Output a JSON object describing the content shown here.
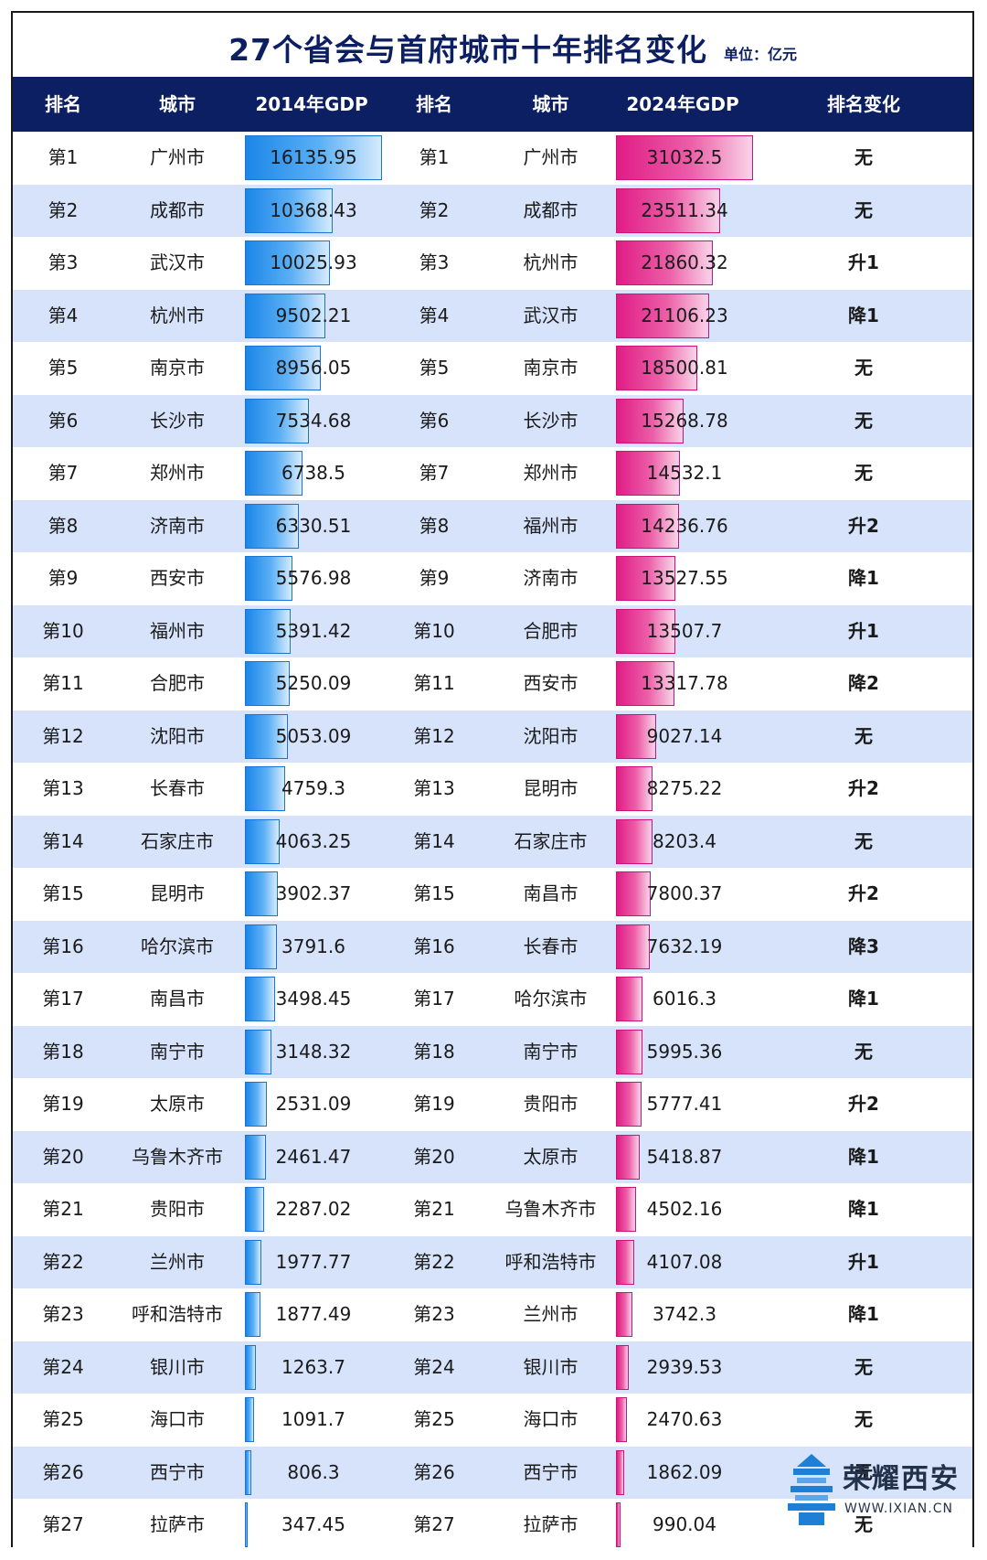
{
  "title": "27个省会与首府城市十年排名变化",
  "unit": "单位：亿元",
  "headers": [
    "排名",
    "城市",
    "2014年GDP",
    "排名",
    "城市",
    "2024年GDP",
    "排名变化"
  ],
  "max_2014": 16135.95,
  "max_2024": 31032.5,
  "colors": {
    "header_bg": "#0d1f63",
    "row_alt": "#d6e3fb",
    "bar_2014": "#1b86e8",
    "bar_2024": "#e01c86"
  },
  "rows": [
    {
      "r1": "第1",
      "c1": "广州市",
      "g1": "16135.95",
      "r2": "第1",
      "c2": "广州市",
      "g2": "31032.5",
      "chg": "无"
    },
    {
      "r1": "第2",
      "c1": "成都市",
      "g1": "10368.43",
      "r2": "第2",
      "c2": "成都市",
      "g2": "23511.34",
      "chg": "无"
    },
    {
      "r1": "第3",
      "c1": "武汉市",
      "g1": "10025.93",
      "r2": "第3",
      "c2": "杭州市",
      "g2": "21860.32",
      "chg": "升1"
    },
    {
      "r1": "第4",
      "c1": "杭州市",
      "g1": "9502.21",
      "r2": "第4",
      "c2": "武汉市",
      "g2": "21106.23",
      "chg": "降1"
    },
    {
      "r1": "第5",
      "c1": "南京市",
      "g1": "8956.05",
      "r2": "第5",
      "c2": "南京市",
      "g2": "18500.81",
      "chg": "无"
    },
    {
      "r1": "第6",
      "c1": "长沙市",
      "g1": "7534.68",
      "r2": "第6",
      "c2": "长沙市",
      "g2": "15268.78",
      "chg": "无"
    },
    {
      "r1": "第7",
      "c1": "郑州市",
      "g1": "6738.5",
      "r2": "第7",
      "c2": "郑州市",
      "g2": "14532.1",
      "chg": "无"
    },
    {
      "r1": "第8",
      "c1": "济南市",
      "g1": "6330.51",
      "r2": "第8",
      "c2": "福州市",
      "g2": "14236.76",
      "chg": "升2"
    },
    {
      "r1": "第9",
      "c1": "西安市",
      "g1": "5576.98",
      "r2": "第9",
      "c2": "济南市",
      "g2": "13527.55",
      "chg": "降1"
    },
    {
      "r1": "第10",
      "c1": "福州市",
      "g1": "5391.42",
      "r2": "第10",
      "c2": "合肥市",
      "g2": "13507.7",
      "chg": "升1"
    },
    {
      "r1": "第11",
      "c1": "合肥市",
      "g1": "5250.09",
      "r2": "第11",
      "c2": "西安市",
      "g2": "13317.78",
      "chg": "降2"
    },
    {
      "r1": "第12",
      "c1": "沈阳市",
      "g1": "5053.09",
      "r2": "第12",
      "c2": "沈阳市",
      "g2": "9027.14",
      "chg": "无"
    },
    {
      "r1": "第13",
      "c1": "长春市",
      "g1": "4759.3",
      "r2": "第13",
      "c2": "昆明市",
      "g2": "8275.22",
      "chg": "升2"
    },
    {
      "r1": "第14",
      "c1": "石家庄市",
      "g1": "4063.25",
      "r2": "第14",
      "c2": "石家庄市",
      "g2": "8203.4",
      "chg": "无"
    },
    {
      "r1": "第15",
      "c1": "昆明市",
      "g1": "3902.37",
      "r2": "第15",
      "c2": "南昌市",
      "g2": "7800.37",
      "chg": "升2"
    },
    {
      "r1": "第16",
      "c1": "哈尔滨市",
      "g1": "3791.6",
      "r2": "第16",
      "c2": "长春市",
      "g2": "7632.19",
      "chg": "降3"
    },
    {
      "r1": "第17",
      "c1": "南昌市",
      "g1": "3498.45",
      "r2": "第17",
      "c2": "哈尔滨市",
      "g2": "6016.3",
      "chg": "降1"
    },
    {
      "r1": "第18",
      "c1": "南宁市",
      "g1": "3148.32",
      "r2": "第18",
      "c2": "南宁市",
      "g2": "5995.36",
      "chg": "无"
    },
    {
      "r1": "第19",
      "c1": "太原市",
      "g1": "2531.09",
      "r2": "第19",
      "c2": "贵阳市",
      "g2": "5777.41",
      "chg": "升2"
    },
    {
      "r1": "第20",
      "c1": "乌鲁木齐市",
      "g1": "2461.47",
      "r2": "第20",
      "c2": "太原市",
      "g2": "5418.87",
      "chg": "降1"
    },
    {
      "r1": "第21",
      "c1": "贵阳市",
      "g1": "2287.02",
      "r2": "第21",
      "c2": "乌鲁木齐市",
      "g2": "4502.16",
      "chg": "降1"
    },
    {
      "r1": "第22",
      "c1": "兰州市",
      "g1": "1977.77",
      "r2": "第22",
      "c2": "呼和浩特市",
      "g2": "4107.08",
      "chg": "升1"
    },
    {
      "r1": "第23",
      "c1": "呼和浩特市",
      "g1": "1877.49",
      "r2": "第23",
      "c2": "兰州市",
      "g2": "3742.3",
      "chg": "降1"
    },
    {
      "r1": "第24",
      "c1": "银川市",
      "g1": "1263.7",
      "r2": "第24",
      "c2": "银川市",
      "g2": "2939.53",
      "chg": "无"
    },
    {
      "r1": "第25",
      "c1": "海口市",
      "g1": "1091.7",
      "r2": "第25",
      "c2": "海口市",
      "g2": "2470.63",
      "chg": "无"
    },
    {
      "r1": "第26",
      "c1": "西宁市",
      "g1": "806.3",
      "r2": "第26",
      "c2": "西宁市",
      "g2": "1862.09",
      "chg": "无"
    },
    {
      "r1": "第27",
      "c1": "拉萨市",
      "g1": "347.45",
      "r2": "第27",
      "c2": "拉萨市",
      "g2": "990.04",
      "chg": "无"
    }
  ],
  "watermark": {
    "name": "荣耀西安",
    "url": "WWW.IXIAN.CN",
    "icon": "pagoda-logo-icon"
  }
}
